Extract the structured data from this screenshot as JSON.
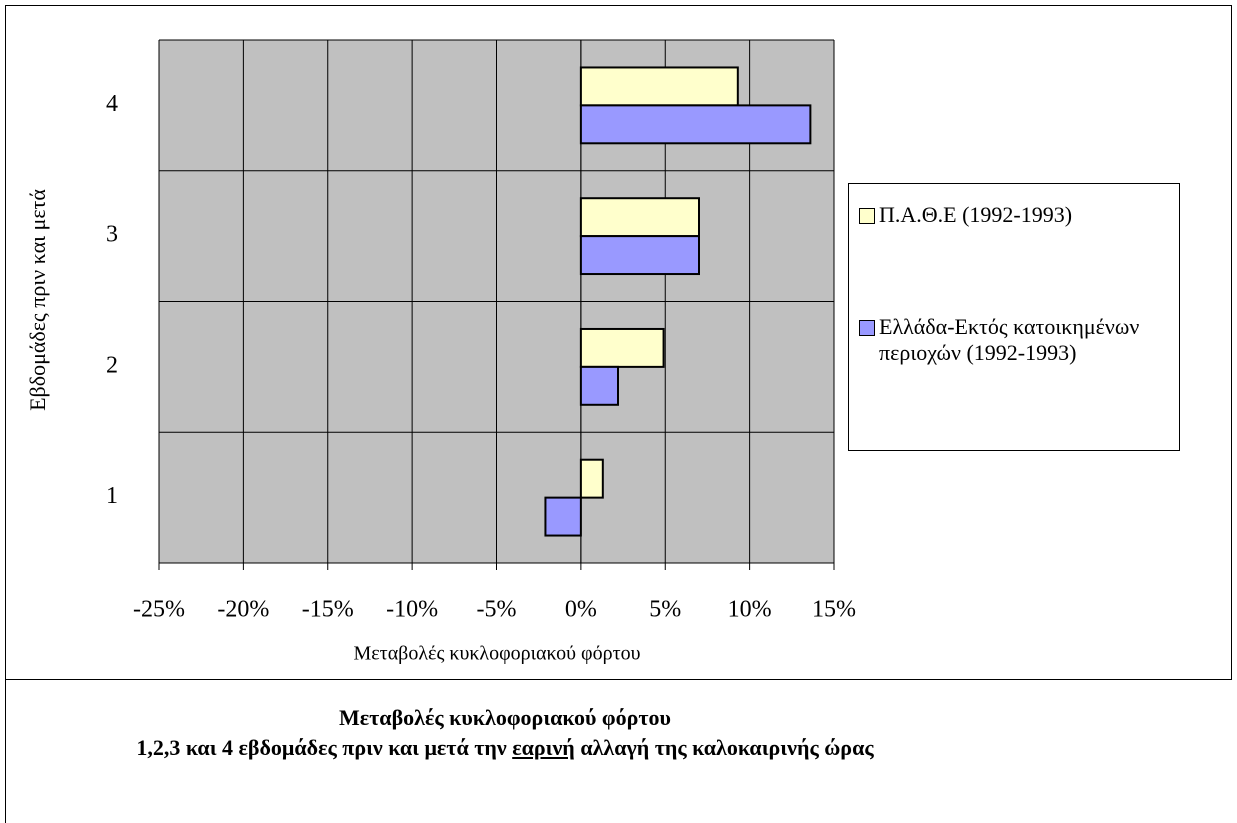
{
  "chart_data": {
    "type": "barh",
    "title": "Μεταβολές κυκλοφοριακού φόρτου",
    "subtitle": [
      "1,2,3 και 4 εβδομάδες πριν και μετά την ",
      "εαρινή",
      " αλλαγή της καλοκαιρινής ώρας"
    ],
    "x_label": "Μεταβολές κυκλοφοριακού φόρτου",
    "y_label": "Εβδομάδες πριν και μετά",
    "categories": [
      "1",
      "2",
      "3",
      "4"
    ],
    "series": [
      {
        "name": "Π.Α.Θ.Ε (1992-1993)",
        "color": "#ffffcc",
        "values": [
          1.3,
          4.9,
          7.0,
          9.3
        ]
      },
      {
        "name": "Ελλάδα-Εκτός κατοικημένων περιοχών (1992-1993)",
        "color": "#9999ff",
        "values": [
          -2.1,
          2.2,
          7.0,
          13.6
        ]
      }
    ],
    "xlim": [
      -25,
      15
    ],
    "xticks": [
      {
        "value": -25,
        "label": "-25%"
      },
      {
        "value": -20,
        "label": "-20%"
      },
      {
        "value": -15,
        "label": "-15%"
      },
      {
        "value": -10,
        "label": "-10%"
      },
      {
        "value": -5,
        "label": "-5%"
      },
      {
        "value": 0,
        "label": "0%"
      },
      {
        "value": 5,
        "label": "5%"
      },
      {
        "value": 10,
        "label": "10%"
      },
      {
        "value": 15,
        "label": "15%"
      }
    ],
    "grid": true,
    "legend": "right"
  }
}
